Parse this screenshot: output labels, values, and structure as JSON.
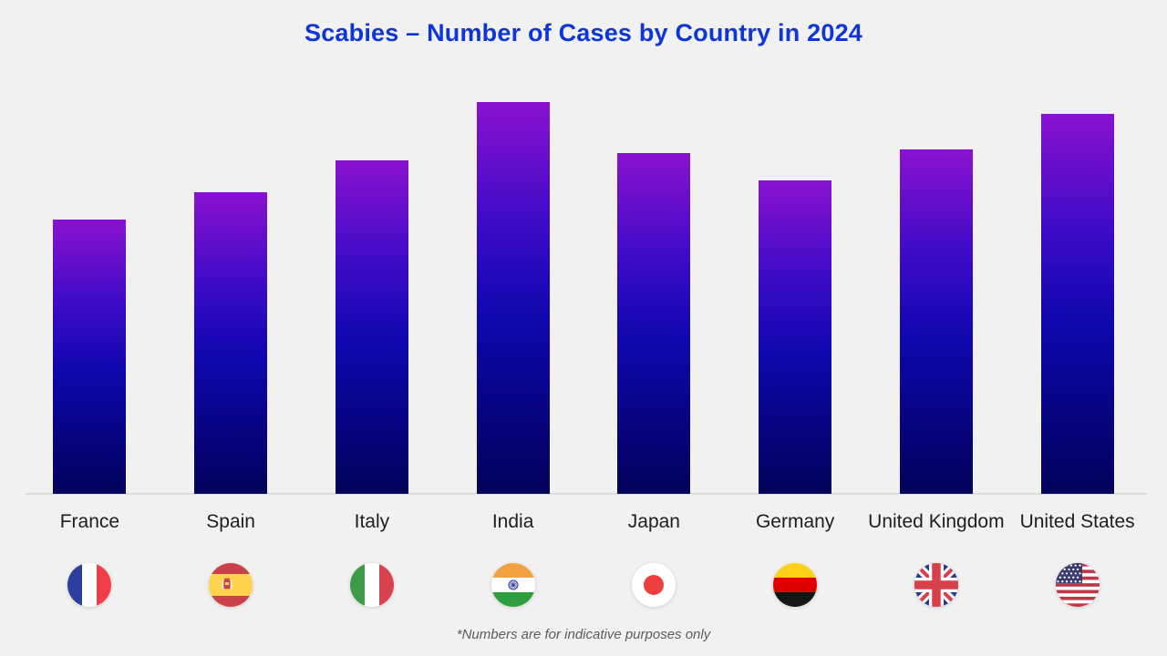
{
  "title": "Scabies – Number of Cases by Country in 2024",
  "footnote": "*Numbers are for indicative purposes only",
  "colors": {
    "background": "#f1f1f2",
    "title": "#0d35d8",
    "bar_gradient_top": "#8a11d0",
    "bar_gradient_mid": "#0e07ae",
    "bar_gradient_bottom": "#01015a",
    "axis_line": "#dcdcdc",
    "category_label": "#1e1e1e",
    "footnote": "#5c5c5c"
  },
  "chart_data": {
    "type": "bar",
    "title": "Scabies – Number of Cases by Country in 2024",
    "categories": [
      "France",
      "Spain",
      "Italy",
      "India",
      "Japan",
      "Germany",
      "United Kingdom",
      "United States"
    ],
    "values": [
      70,
      77,
      85,
      100,
      87,
      80,
      88,
      97
    ],
    "unit": "relative bar height, % of tallest bar (no numeric axis or data labels shown)",
    "xlabel": "",
    "ylabel": "",
    "ylim": [
      0,
      100
    ],
    "grid": false,
    "legend": false,
    "value_labels_shown": false,
    "flag_icons": [
      "france-flag-icon",
      "spain-flag-icon",
      "italy-flag-icon",
      "india-flag-icon",
      "japan-flag-icon",
      "germany-flag-icon",
      "united-kingdom-flag-icon",
      "united-states-flag-icon"
    ],
    "annotations": [
      "*Numbers are for indicative purposes only"
    ]
  }
}
